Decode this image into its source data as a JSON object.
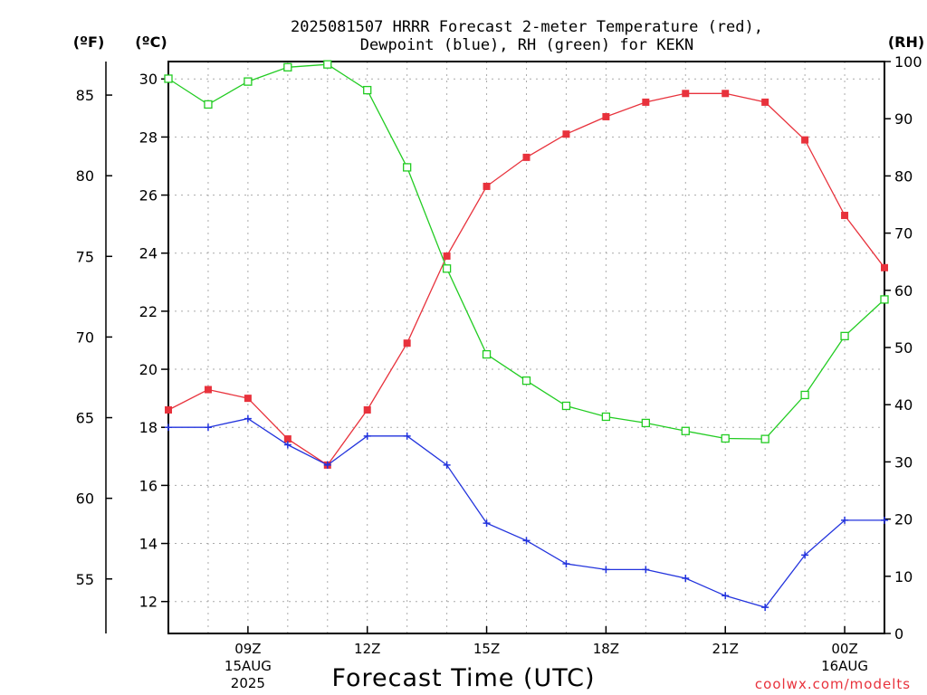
{
  "chart_data": {
    "type": "line",
    "title_lines": [
      "2025081507 HRRR Forecast 2-meter Temperature (red),",
      "Dewpoint (blue), RH (green) for KEKN"
    ],
    "xlabel": "Forecast Time (UTC)",
    "x_hours_utc": [
      7,
      8,
      9,
      10,
      11,
      12,
      13,
      14,
      15,
      16,
      17,
      18,
      19,
      20,
      21,
      22,
      23,
      24,
      25
    ],
    "x_range": [
      7,
      25
    ],
    "x_ticks": [
      {
        "hour": 9,
        "lines": [
          "09Z",
          "15AUG",
          "2025"
        ]
      },
      {
        "hour": 12,
        "lines": [
          "12Z"
        ]
      },
      {
        "hour": 15,
        "lines": [
          "15Z"
        ]
      },
      {
        "hour": 18,
        "lines": [
          "18Z"
        ]
      },
      {
        "hour": 21,
        "lines": [
          "21Z"
        ]
      },
      {
        "hour": 24,
        "lines": [
          "00Z",
          "16AUG"
        ]
      }
    ],
    "left_axis_c": {
      "unit_label": "(ºC)",
      "range": [
        10.9,
        30.6
      ],
      "ticks": [
        12,
        14,
        16,
        18,
        20,
        22,
        24,
        26,
        28,
        30
      ]
    },
    "left_axis_f": {
      "unit_label": "(ºF)",
      "ticks": [
        55,
        60,
        65,
        70,
        75,
        80,
        85
      ]
    },
    "right_axis_rh": {
      "unit_label": "(RH)",
      "range": [
        0,
        100
      ],
      "ticks": [
        0,
        10,
        20,
        30,
        40,
        50,
        60,
        70,
        80,
        90,
        100
      ]
    },
    "grid": true,
    "series": [
      {
        "key": "temperature",
        "axis": "left",
        "color": "#e8323c",
        "marker": "filled-square",
        "values": [
          18.6,
          19.3,
          19.0,
          17.6,
          16.7,
          18.6,
          20.9,
          23.9,
          26.3,
          27.3,
          28.1,
          28.7,
          29.2,
          29.5,
          29.5,
          29.2,
          27.9,
          25.3,
          23.5
        ]
      },
      {
        "key": "dewpoint",
        "axis": "left",
        "color": "#2233dd",
        "marker": "plus",
        "values": [
          18.0,
          18.0,
          18.3,
          17.4,
          16.7,
          17.7,
          17.7,
          16.7,
          14.7,
          14.1,
          13.3,
          13.1,
          13.1,
          12.8,
          12.2,
          11.8,
          13.6,
          14.8,
          14.8
        ]
      },
      {
        "key": "rh",
        "axis": "right",
        "color": "#22cc22",
        "marker": "open-square",
        "values": [
          97,
          92.5,
          96.5,
          99,
          99.5,
          95,
          81.5,
          63.8,
          48.8,
          44.2,
          39.8,
          37.9,
          36.8,
          35.4,
          34.1,
          34.0,
          41.7,
          52.0,
          58.4
        ]
      }
    ],
    "credit": "coolwx.com/modelts"
  }
}
